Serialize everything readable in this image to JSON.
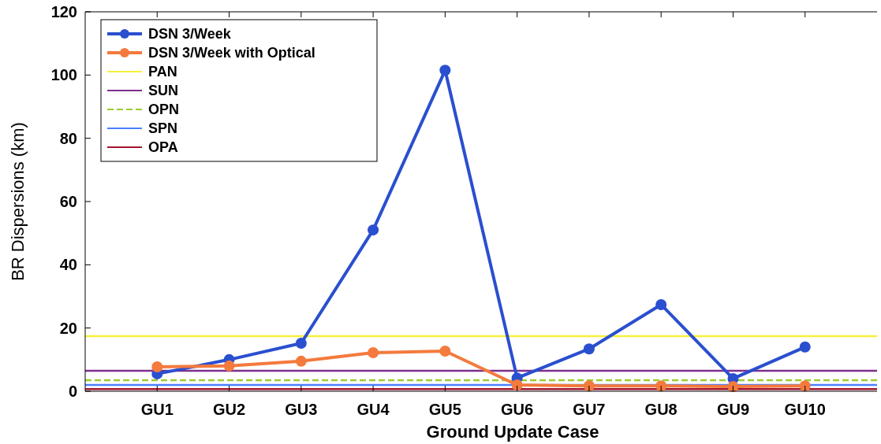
{
  "chart_data": {
    "type": "line",
    "xlabel": "Ground Update Case",
    "ylabel": "BR Dispersions (km)",
    "categories": [
      "GU1",
      "GU2",
      "GU3",
      "GU4",
      "GU5",
      "GU6",
      "GU7",
      "GU8",
      "GU9",
      "GU10"
    ],
    "series": [
      {
        "name": "DSN 3/Week",
        "color": "#2a4fcf",
        "values": [
          5.5,
          10,
          15.2,
          51,
          101.5,
          4.2,
          13.4,
          27.4,
          4,
          14
        ]
      },
      {
        "name": "DSN 3/Week with Optical",
        "color": "#f47a3d",
        "values": [
          7.7,
          8,
          9.5,
          12.2,
          12.7,
          2,
          1.7,
          1.7,
          1.5,
          1.7
        ]
      }
    ],
    "ref_lines": [
      {
        "axis": "y",
        "value": 17.4,
        "label": "PAN",
        "color": "#f5f03a"
      },
      {
        "axis": "y",
        "value": 6.5,
        "label": "SUN",
        "color": "#7e2f8e"
      },
      {
        "axis": "y",
        "value": 3.5,
        "label": "OPN",
        "color": "#9ccc30",
        "line_style": "dashed"
      },
      {
        "axis": "y",
        "value": 2,
        "label": "SPN",
        "color": "#4d7fff"
      },
      {
        "axis": "y",
        "value": 0.7,
        "label": "OPA",
        "color": "#a2142f"
      }
    ],
    "ylim": [
      0,
      120
    ],
    "yticks": [
      0,
      20,
      40,
      60,
      80,
      100,
      120
    ],
    "grid": false,
    "legend": "top left",
    "marker": "circle",
    "line_style": "solid"
  }
}
